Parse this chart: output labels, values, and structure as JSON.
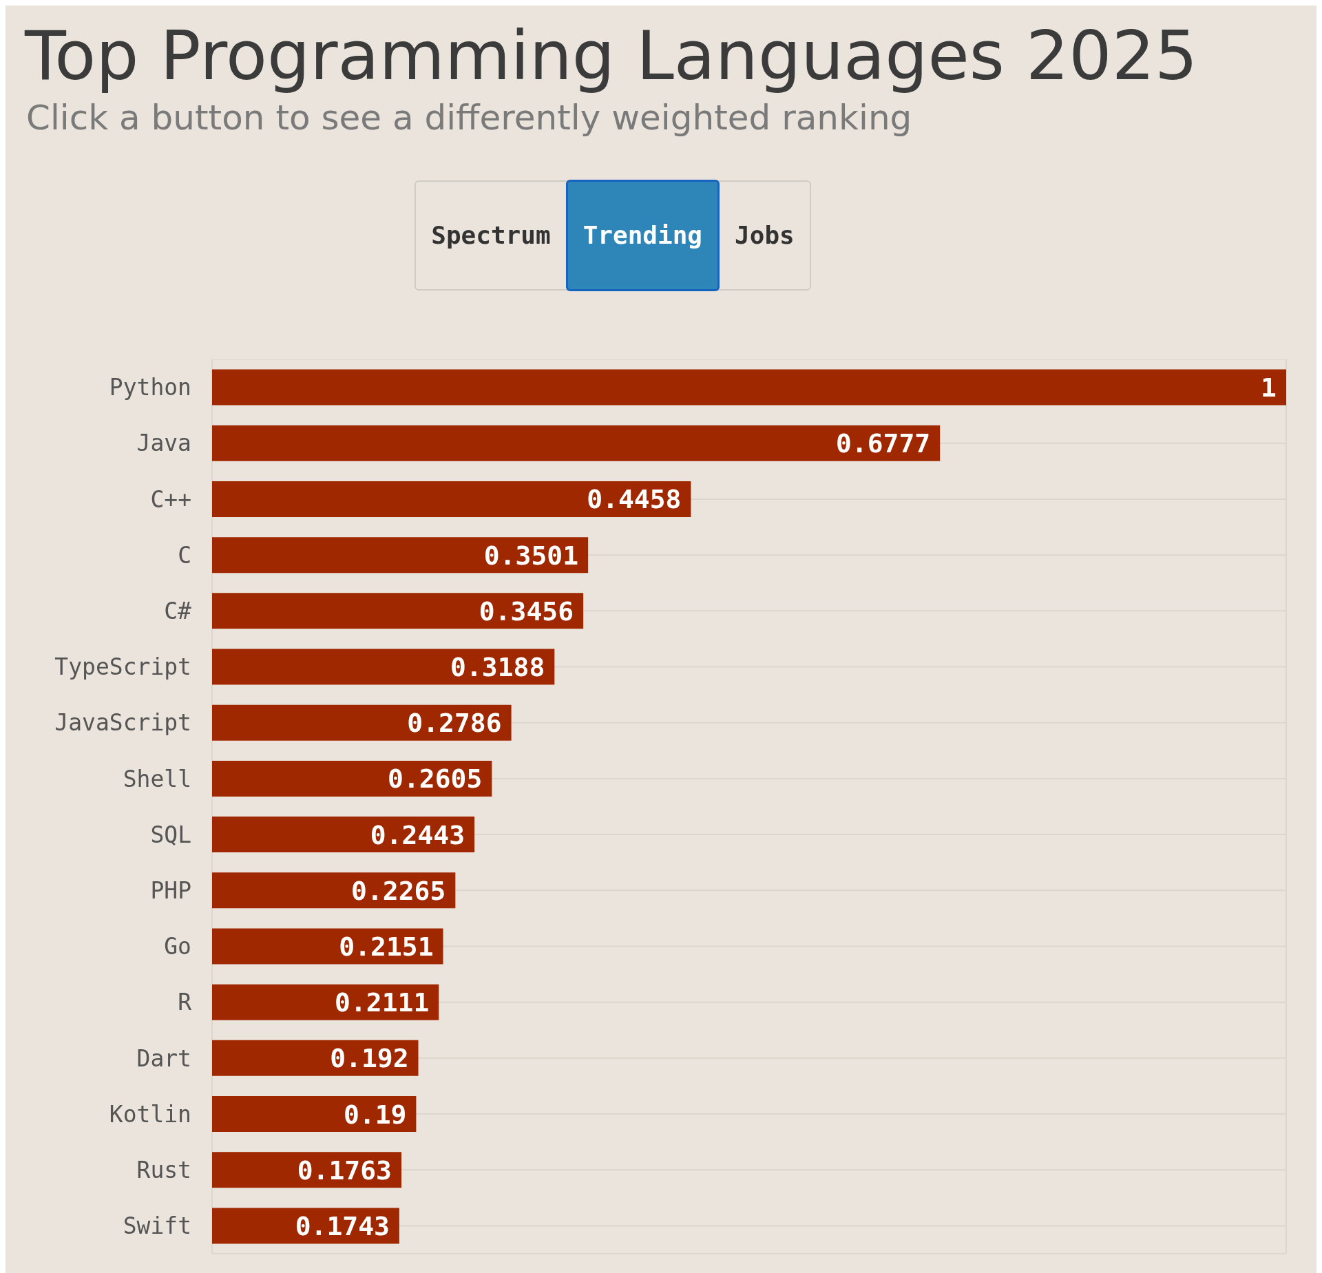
{
  "chart_data": {
    "type": "bar",
    "orientation": "horizontal",
    "title": "Top Programming Languages 2025",
    "subtitle": "Click a button to see a differently weighted ranking",
    "annotations": [
      "Spectrum",
      "Trending",
      "Jobs"
    ],
    "categories": [
      "Python",
      "Java",
      "C++",
      "C",
      "C#",
      "TypeScript",
      "JavaScript",
      "Shell",
      "SQL",
      "PHP",
      "Go",
      "R",
      "Dart",
      "Kotlin",
      "Rust",
      "Swift"
    ],
    "values": [
      1,
      0.6777,
      0.4458,
      0.3501,
      0.3456,
      0.3188,
      0.2786,
      0.2605,
      0.2443,
      0.2265,
      0.2151,
      0.2111,
      0.192,
      0.19,
      0.1763,
      0.1743
    ],
    "color": "#a02800",
    "xlim": [
      0,
      1
    ],
    "tick_labels": "y",
    "grid": true,
    "data_labels": true
  }
}
